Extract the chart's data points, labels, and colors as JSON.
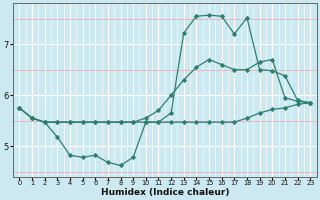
{
  "xlabel": "Humidex (Indice chaleur)",
  "x": [
    0,
    1,
    2,
    3,
    4,
    5,
    6,
    7,
    8,
    9,
    10,
    11,
    12,
    13,
    14,
    15,
    16,
    17,
    18,
    19,
    20,
    21,
    22,
    23
  ],
  "line1": [
    5.75,
    5.55,
    5.47,
    5.47,
    5.47,
    5.47,
    5.47,
    5.47,
    5.47,
    5.47,
    5.55,
    5.7,
    6.0,
    6.3,
    6.55,
    6.7,
    6.6,
    6.5,
    6.5,
    6.65,
    6.7,
    5.95,
    5.88,
    5.85
  ],
  "line2": [
    5.75,
    5.55,
    5.47,
    5.18,
    4.82,
    4.78,
    4.82,
    4.68,
    4.62,
    4.78,
    5.47,
    5.47,
    5.65,
    7.22,
    7.55,
    7.57,
    7.55,
    7.2,
    7.52,
    6.5,
    6.48,
    6.38,
    5.9,
    5.85
  ],
  "line3": [
    5.75,
    5.55,
    5.47,
    5.47,
    5.47,
    5.47,
    5.47,
    5.47,
    5.47,
    5.47,
    5.47,
    5.47,
    5.47,
    5.47,
    5.47,
    5.47,
    5.47,
    5.47,
    5.55,
    5.65,
    5.72,
    5.75,
    5.82,
    5.85
  ],
  "line_color": "#2e7d6e",
  "bg_color": "#cce8f0",
  "grid_major_color": "#ffffff",
  "grid_minor_color": "#e8b0b0",
  "ylim": [
    4.4,
    7.8
  ],
  "xlim": [
    -0.5,
    23.5
  ],
  "yticks": [
    5,
    6,
    7
  ],
  "yticks_minor": [
    4.5,
    5.0,
    5.5,
    6.0,
    6.5,
    7.0,
    7.5
  ],
  "xticks": [
    0,
    1,
    2,
    3,
    4,
    5,
    6,
    7,
    8,
    9,
    10,
    11,
    12,
    13,
    14,
    15,
    16,
    17,
    18,
    19,
    20,
    21,
    22,
    23
  ]
}
